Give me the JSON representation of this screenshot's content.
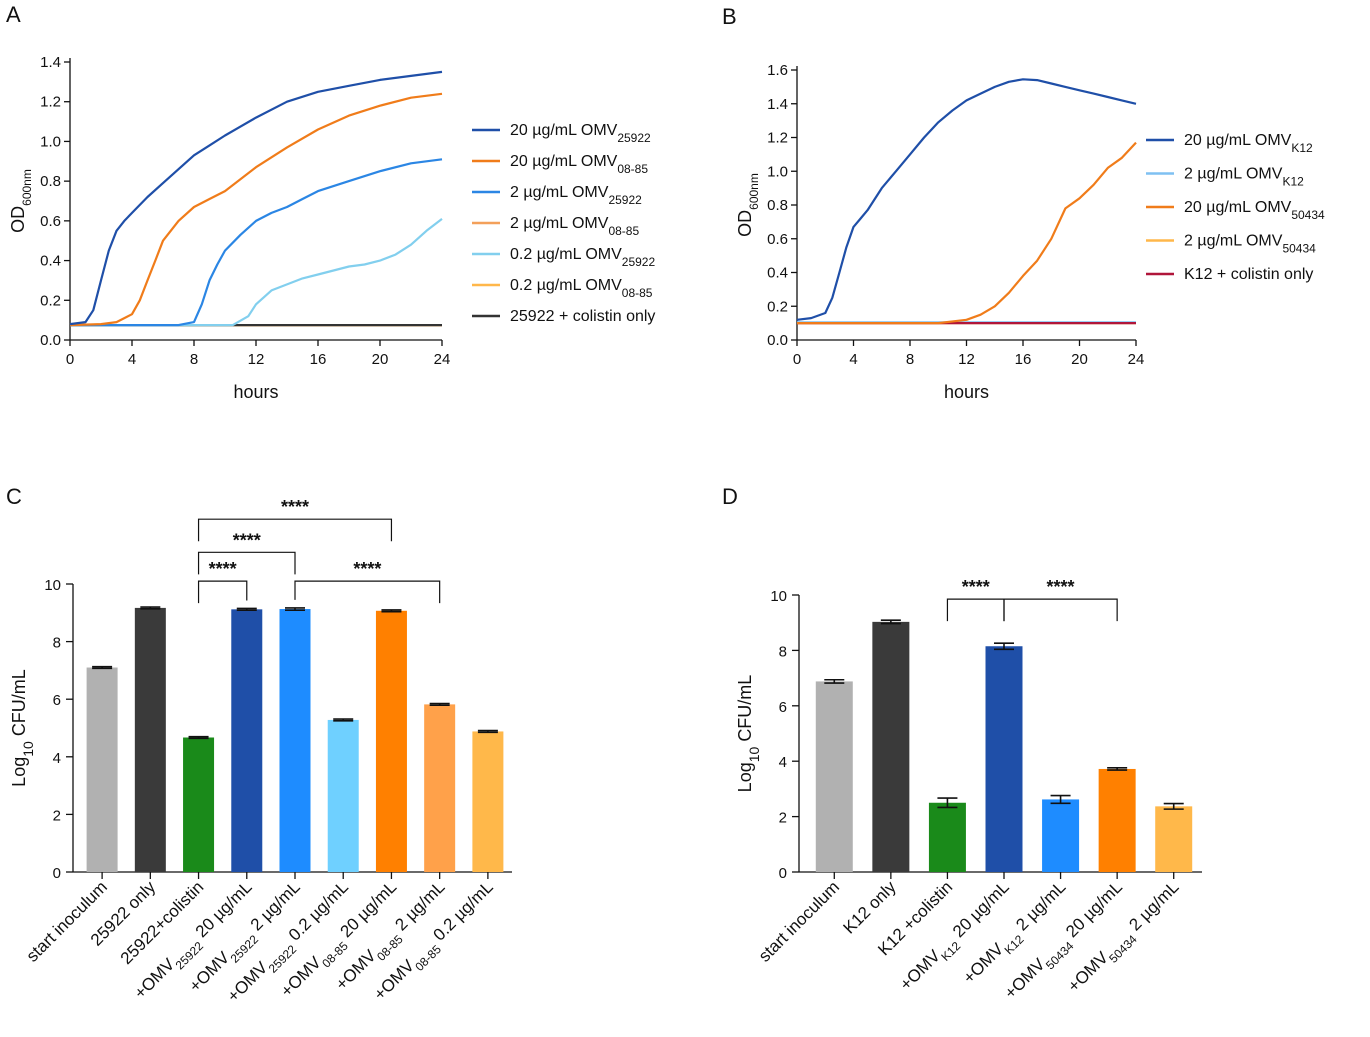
{
  "chart_data": [
    {
      "panel": "A",
      "type": "line",
      "xlabel": "hours",
      "ylabel": "OD",
      "ylabel_sub": "600nm",
      "xlim": [
        0,
        24
      ],
      "ylim": [
        0,
        1.4
      ],
      "xticks": [
        "0",
        "4",
        "8",
        "12",
        "16",
        "20",
        "24"
      ],
      "yticks": [
        "0.0",
        "0.2",
        "0.4",
        "0.6",
        "0.8",
        "1.0",
        "1.2",
        "1.4"
      ],
      "legend_position": "right",
      "series": [
        {
          "name": "20 µg/mL OMV",
          "sub": "25922",
          "color": "#1f4fa8",
          "x": [
            0,
            1,
            1.5,
            2,
            2.5,
            3,
            3.5,
            4,
            5,
            6,
            7,
            8,
            9,
            10,
            12,
            14,
            16,
            18,
            20,
            22,
            24
          ],
          "y": [
            0.08,
            0.09,
            0.15,
            0.3,
            0.45,
            0.55,
            0.6,
            0.64,
            0.72,
            0.79,
            0.86,
            0.93,
            0.98,
            1.03,
            1.12,
            1.2,
            1.25,
            1.28,
            1.31,
            1.33,
            1.35
          ]
        },
        {
          "name": "20 µg/mL OMV",
          "sub": "08-85",
          "color": "#f07c1a",
          "x": [
            0,
            2,
            3,
            4,
            4.5,
            5,
            5.5,
            6,
            7,
            8,
            9,
            10,
            12,
            14,
            16,
            18,
            20,
            22,
            24
          ],
          "y": [
            0.075,
            0.08,
            0.09,
            0.13,
            0.2,
            0.3,
            0.4,
            0.5,
            0.6,
            0.67,
            0.71,
            0.75,
            0.87,
            0.97,
            1.06,
            1.13,
            1.18,
            1.22,
            1.24
          ]
        },
        {
          "name": "2 µg/mL OMV",
          "sub": "25922",
          "color": "#2b86e4",
          "x": [
            0,
            7,
            8,
            8.5,
            9,
            9.5,
            10,
            11,
            12,
            13,
            14,
            15,
            16,
            18,
            20,
            22,
            24
          ],
          "y": [
            0.075,
            0.075,
            0.09,
            0.18,
            0.3,
            0.38,
            0.45,
            0.53,
            0.6,
            0.64,
            0.67,
            0.71,
            0.75,
            0.8,
            0.85,
            0.89,
            0.91
          ]
        },
        {
          "name": "2 µg/mL OMV",
          "sub": "08-85",
          "color": "#f3a05a",
          "x": [
            0,
            24
          ],
          "y": [
            0.075,
            0.075
          ]
        },
        {
          "name": "0.2 µg/mL OMV",
          "sub": "25922",
          "color": "#82cfee",
          "x": [
            0,
            10.5,
            11.5,
            12,
            13,
            14,
            15,
            16,
            17,
            18,
            19,
            20,
            21,
            22,
            23,
            24
          ],
          "y": [
            0.075,
            0.075,
            0.12,
            0.18,
            0.25,
            0.28,
            0.31,
            0.33,
            0.35,
            0.37,
            0.38,
            0.4,
            0.43,
            0.48,
            0.55,
            0.61
          ]
        },
        {
          "name": "0.2 µg/mL OMV",
          "sub": "08-85",
          "color": "#ffb74a",
          "x": [
            0,
            24
          ],
          "y": [
            0.075,
            0.075
          ]
        },
        {
          "name": "25922 + colistin only",
          "sub": "",
          "color": "#333333",
          "x": [
            0,
            24
          ],
          "y": [
            0.075,
            0.075
          ]
        }
      ]
    },
    {
      "panel": "B",
      "type": "line",
      "xlabel": "hours",
      "ylabel": "OD",
      "ylabel_sub": "600nm",
      "xlim": [
        0,
        24
      ],
      "ylim": [
        0,
        1.6
      ],
      "xticks": [
        "0",
        "4",
        "8",
        "12",
        "16",
        "20",
        "24"
      ],
      "yticks": [
        "0.0",
        "0.2",
        "0.4",
        "0.6",
        "0.8",
        "1.0",
        "1.2",
        "1.4",
        "1.6"
      ],
      "legend_position": "right",
      "series": [
        {
          "name": "20 µg/mL OMV",
          "sub": "K12",
          "color": "#1f4fa8",
          "x": [
            0,
            1,
            2,
            2.5,
            3,
            3.5,
            4,
            4.5,
            5,
            6,
            7,
            8,
            9,
            10,
            11,
            12,
            13,
            14,
            15,
            16,
            17,
            18,
            19,
            20,
            21,
            22,
            23,
            24
          ],
          "y": [
            0.12,
            0.13,
            0.16,
            0.25,
            0.4,
            0.55,
            0.67,
            0.72,
            0.77,
            0.9,
            1.0,
            1.1,
            1.2,
            1.29,
            1.36,
            1.42,
            1.46,
            1.5,
            1.53,
            1.545,
            1.54,
            1.52,
            1.5,
            1.48,
            1.46,
            1.44,
            1.42,
            1.4
          ]
        },
        {
          "name": "2 µg/mL OMV",
          "sub": "K12",
          "color": "#7fc0f2",
          "x": [
            0,
            24
          ],
          "y": [
            0.105,
            0.105
          ]
        },
        {
          "name": "20 µg/mL OMV",
          "sub": "50434",
          "color": "#f07c1a",
          "x": [
            0,
            10,
            12,
            13,
            14,
            15,
            16,
            17,
            18,
            19,
            20,
            21,
            22,
            23,
            24
          ],
          "y": [
            0.1,
            0.1,
            0.12,
            0.15,
            0.2,
            0.28,
            0.38,
            0.47,
            0.6,
            0.78,
            0.84,
            0.92,
            1.02,
            1.08,
            1.17
          ]
        },
        {
          "name": "2 µg/mL OMV",
          "sub": "50434",
          "color": "#ffb74a",
          "x": [
            0,
            24
          ],
          "y": [
            0.1,
            0.1
          ]
        },
        {
          "name": "K12 + colistin only",
          "sub": "",
          "color": "#b0153a",
          "x": [
            0,
            24
          ],
          "y": [
            0.1,
            0.1
          ]
        }
      ]
    },
    {
      "panel": "C",
      "type": "bar",
      "ylabel": "Log",
      "ylabel_sub": "10",
      "ylabel_rest": " CFU/mL",
      "ylim": [
        0,
        10
      ],
      "yticks": [
        "0",
        "2",
        "4",
        "6",
        "8",
        "10"
      ],
      "categories": [
        {
          "pre": "start inoculum",
          "sub": "",
          "post": ""
        },
        {
          "pre": "25922 only",
          "sub": "",
          "post": ""
        },
        {
          "pre": "25922+colistin",
          "sub": "",
          "post": ""
        },
        {
          "pre": "+OMV",
          "sub": "25922",
          "post": " 20 µg/mL"
        },
        {
          "pre": "+OMV",
          "sub": "25922",
          "post": " 2 µg/mL"
        },
        {
          "pre": "+OMV",
          "sub": "25922",
          "post": " 0.2 µg/mL"
        },
        {
          "pre": "+OMV",
          "sub": "08-85",
          "post": " 20 µg/mL"
        },
        {
          "pre": "+OMV",
          "sub": "08-85",
          "post": " 2 µg/mL"
        },
        {
          "pre": "+OMV",
          "sub": "08-85",
          "post": " 0.2 µg/mL"
        }
      ],
      "values": [
        7.1,
        9.17,
        4.67,
        9.12,
        9.13,
        5.28,
        9.07,
        5.82,
        4.88
      ],
      "errors": [
        0.03,
        0.03,
        0.03,
        0.03,
        0.04,
        0.03,
        0.03,
        0.03,
        0.03
      ],
      "colors": [
        "#b1b1b1",
        "#3a3a3a",
        "#1a8a1a",
        "#1f4fa8",
        "#1e8cff",
        "#6fd0ff",
        "#ff8000",
        "#ffa14a",
        "#ffb84a"
      ],
      "significance": [
        {
          "from": 2,
          "to": 3,
          "label": "****",
          "y": 10.1
        },
        {
          "from": 2,
          "to": 4,
          "label": "****",
          "y": 11.1
        },
        {
          "from": 2,
          "to": 6,
          "label": "****",
          "y": 12.25
        },
        {
          "from": 4,
          "to": 7,
          "label": "****",
          "y": 10.1
        }
      ]
    },
    {
      "panel": "D",
      "type": "bar",
      "ylabel": "Log",
      "ylabel_sub": "10",
      "ylabel_rest": " CFU/mL",
      "ylim": [
        0,
        10
      ],
      "yticks": [
        "0",
        "2",
        "4",
        "6",
        "8",
        "10"
      ],
      "categories": [
        {
          "pre": "start inoculum",
          "sub": "",
          "post": ""
        },
        {
          "pre": "K12 only",
          "sub": "",
          "post": ""
        },
        {
          "pre": "K12 +colistin",
          "sub": "",
          "post": ""
        },
        {
          "pre": "+OMV",
          "sub": "K12",
          "post": " 20 µg/mL"
        },
        {
          "pre": "+OMV",
          "sub": "K12",
          "post": " 2 µg/mL"
        },
        {
          "pre": "+OMV",
          "sub": "50434",
          "post": " 20 µg/mL"
        },
        {
          "pre": "+OMV",
          "sub": "50434",
          "post": " 2 µg/mL"
        }
      ],
      "values": [
        6.88,
        9.03,
        2.5,
        8.15,
        2.62,
        3.72,
        2.37
      ],
      "errors": [
        0.06,
        0.06,
        0.17,
        0.11,
        0.14,
        0.04,
        0.1
      ],
      "colors": [
        "#b1b1b1",
        "#3a3a3a",
        "#1a8a1a",
        "#1f4fa8",
        "#1e8cff",
        "#ff8000",
        "#ffb84a"
      ],
      "significance": [
        {
          "from": 2,
          "to": 3,
          "label": "****",
          "y": 9.85
        },
        {
          "from": 3,
          "to": 5,
          "label": "****",
          "y": 9.85
        }
      ]
    }
  ]
}
